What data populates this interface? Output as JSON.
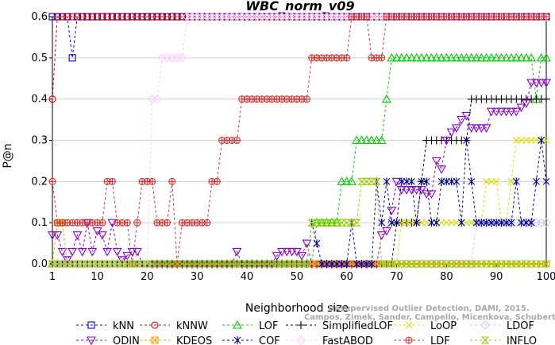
{
  "chart_data": {
    "type": "line",
    "title": "WBC_norm_v09",
    "xlabel": "Neighborhood size",
    "ylabel": "P@n",
    "xlim": [
      1,
      100
    ],
    "ylim": [
      0,
      0.6
    ],
    "xticks": [
      1,
      10,
      20,
      30,
      40,
      50,
      60,
      70,
      80,
      90,
      100
    ],
    "yticks": [
      0.0,
      0.1,
      0.2,
      0.3,
      0.4,
      0.5,
      0.6
    ],
    "credit": [
      "Unsupervised Outlier Detection, DAMI, 2015.",
      "Campos, Zimek, Sander, Campello, Micenkova, Schubert, Assent, Houle"
    ],
    "series": [
      {
        "name": "kNN",
        "color": "#0000cc",
        "marker": "square",
        "points": [
          [
            1,
            0.6
          ],
          [
            3,
            0.6
          ],
          [
            4,
            0.6
          ],
          [
            5,
            0.5
          ],
          [
            6,
            0.6
          ],
          [
            100,
            0.6
          ]
        ]
      },
      {
        "name": "kNNW",
        "color": "#cc0000",
        "marker": "circle",
        "points": [
          [
            1,
            0.4
          ],
          [
            2,
            0.6
          ],
          [
            100,
            0.6
          ]
        ]
      },
      {
        "name": "LOF",
        "color": "#00cc00",
        "marker": "triangle",
        "points": [
          [
            1,
            0
          ],
          [
            53,
            0
          ],
          [
            54,
            0.1
          ],
          [
            58,
            0.1
          ],
          [
            59,
            0.2
          ],
          [
            61,
            0.2
          ],
          [
            62,
            0.3
          ],
          [
            67,
            0.3
          ],
          [
            68,
            0.4
          ],
          [
            69,
            0.5
          ],
          [
            97,
            0.5
          ],
          [
            98,
            0.4
          ],
          [
            99,
            0.5
          ],
          [
            100,
            0.5
          ]
        ]
      },
      {
        "name": "SimplifiedLOF",
        "color": "#000000",
        "marker": "plus",
        "points": [
          [
            1,
            0
          ],
          [
            69,
            0
          ],
          [
            70,
            0.1
          ],
          [
            74,
            0.1
          ],
          [
            75,
            0.2
          ],
          [
            76,
            0.3
          ],
          [
            84,
            0.3
          ],
          [
            85,
            0.4
          ],
          [
            100,
            0.4
          ]
        ]
      },
      {
        "name": "LoOP",
        "color": "#dddd00",
        "marker": "x",
        "points": [
          [
            1,
            0
          ],
          [
            70,
            0
          ],
          [
            71,
            0.1
          ],
          [
            87,
            0.1
          ],
          [
            88,
            0.2
          ],
          [
            90,
            0.2
          ],
          [
            91,
            0.1
          ],
          [
            93,
            0.2
          ],
          [
            94,
            0.3
          ],
          [
            100,
            0.3
          ]
        ]
      },
      {
        "name": "LDOF",
        "color": "#ccccee",
        "marker": "diamond",
        "points": [
          [
            1,
            0
          ],
          [
            85,
            0
          ],
          [
            86,
            0.1
          ],
          [
            100,
            0.1
          ]
        ]
      },
      {
        "name": "ODIN",
        "color": "#8800cc",
        "marker": "triangle-down",
        "points": [
          [
            1,
            0.07
          ],
          [
            2,
            0.07
          ],
          [
            3,
            0.03
          ],
          [
            4,
            0.01
          ],
          [
            5,
            0.03
          ],
          [
            6,
            0.07
          ],
          [
            7,
            0.03
          ],
          [
            8,
            0.1
          ],
          [
            9,
            0.03
          ],
          [
            10,
            0.08
          ],
          [
            11,
            0.07
          ],
          [
            12,
            0.03
          ],
          [
            13,
            0.1
          ],
          [
            14,
            0.03
          ],
          [
            15,
            0.01
          ],
          [
            16,
            0.02
          ],
          [
            17,
            0.03
          ],
          [
            18,
            0.03
          ],
          [
            19,
            0
          ],
          [
            37,
            0
          ],
          [
            38,
            0.03
          ],
          [
            39,
            0
          ],
          [
            45,
            0
          ],
          [
            46,
            0.02
          ],
          [
            47,
            0.03
          ],
          [
            48,
            0.03
          ],
          [
            49,
            0.03
          ],
          [
            50,
            0.03
          ],
          [
            51,
            0.02
          ],
          [
            52,
            0.05
          ],
          [
            53,
            0
          ],
          [
            66,
            0
          ],
          [
            67,
            0.07
          ],
          [
            68,
            0.08
          ],
          [
            69,
            0.13
          ],
          [
            70,
            0.2
          ],
          [
            71,
            0.18
          ],
          [
            72,
            0.18
          ],
          [
            73,
            0.18
          ],
          [
            74,
            0.18
          ],
          [
            75,
            0.18
          ],
          [
            76,
            0.17
          ],
          [
            77,
            0.17
          ],
          [
            78,
            0.25
          ],
          [
            79,
            0.23
          ],
          [
            80,
            0.3
          ],
          [
            81,
            0.32
          ],
          [
            82,
            0.33
          ],
          [
            83,
            0.35
          ],
          [
            84,
            0.36
          ],
          [
            85,
            0.33
          ],
          [
            86,
            0.33
          ],
          [
            87,
            0.33
          ],
          [
            88,
            0.33
          ],
          [
            89,
            0.37
          ],
          [
            90,
            0.37
          ],
          [
            91,
            0.37
          ],
          [
            92,
            0.37
          ],
          [
            93,
            0.37
          ],
          [
            94,
            0.37
          ],
          [
            95,
            0.38
          ],
          [
            96,
            0.39
          ],
          [
            97,
            0.44
          ],
          [
            98,
            0.44
          ]
        ]
      },
      {
        "name": "KDEOS",
        "color": "#ff9900",
        "marker": "square-x",
        "points": [
          [
            1,
            0
          ],
          [
            2,
            0.1
          ],
          [
            3,
            0.1
          ],
          [
            4,
            0
          ],
          [
            100,
            0
          ]
        ]
      },
      {
        "name": "COF",
        "color": "#000088",
        "marker": "asterisk",
        "points": [
          [
            1,
            0
          ],
          [
            52,
            0
          ],
          [
            53,
            0.1
          ],
          [
            54,
            0.05
          ],
          [
            55,
            0
          ],
          [
            60,
            0
          ],
          [
            61,
            0.1
          ],
          [
            62,
            0
          ],
          [
            65,
            0
          ],
          [
            66,
            0.2
          ],
          [
            67,
            0.1
          ],
          [
            68,
            0.2
          ],
          [
            69,
            0.1
          ],
          [
            70,
            0.1
          ],
          [
            71,
            0.2
          ],
          [
            72,
            0.2
          ],
          [
            73,
            0.2
          ],
          [
            74,
            0.1
          ],
          [
            75,
            0.2
          ],
          [
            76,
            0.2
          ],
          [
            77,
            0.1
          ],
          [
            78,
            0.1
          ],
          [
            79,
            0.2
          ],
          [
            80,
            0.2
          ],
          [
            81,
            0.2
          ],
          [
            82,
            0.2
          ],
          [
            83,
            0.1
          ],
          [
            84,
            0.3
          ],
          [
            85,
            0.2
          ],
          [
            86,
            0.1
          ],
          [
            87,
            0.1
          ],
          [
            88,
            0.1
          ],
          [
            89,
            0.1
          ],
          [
            90,
            0.1
          ],
          [
            91,
            0.1
          ],
          [
            92,
            0.1
          ],
          [
            93,
            0.1
          ],
          [
            94,
            0.2
          ],
          [
            95,
            0.1
          ],
          [
            96,
            0.1
          ],
          [
            97,
            0.1
          ],
          [
            98,
            0.2
          ],
          [
            99,
            0.3
          ],
          [
            100,
            0.2
          ]
        ]
      },
      {
        "name": "FastABOD",
        "color": "#ffccff",
        "marker": "diamond",
        "points": [
          [
            1,
            0
          ],
          [
            20,
            0
          ],
          [
            21,
            0.4
          ],
          [
            22,
            0.4
          ],
          [
            23,
            0.5
          ],
          [
            24,
            0.5
          ],
          [
            25,
            0.5
          ],
          [
            26,
            0.5
          ],
          [
            27,
            0.5
          ],
          [
            28,
            0.6
          ],
          [
            100,
            0.6
          ]
        ]
      },
      {
        "name": "LDF",
        "color": "#cc3333",
        "marker": "circle-plus",
        "points": [
          [
            1,
            0.2
          ],
          [
            2,
            0.1
          ],
          [
            3,
            0.1
          ],
          [
            4,
            0.1
          ],
          [
            5,
            0.1
          ],
          [
            6,
            0.1
          ],
          [
            7,
            0.1
          ],
          [
            8,
            0.1
          ],
          [
            9,
            0.1
          ],
          [
            10,
            0.1
          ],
          [
            11,
            0.1
          ],
          [
            12,
            0.2
          ],
          [
            13,
            0.2
          ],
          [
            14,
            0.1
          ],
          [
            15,
            0.1
          ],
          [
            16,
            0.1
          ],
          [
            17,
            0
          ],
          [
            18,
            0.1
          ],
          [
            19,
            0.2
          ],
          [
            20,
            0.2
          ],
          [
            21,
            0.2
          ],
          [
            22,
            0.1
          ],
          [
            23,
            0.1
          ],
          [
            24,
            0.1
          ],
          [
            25,
            0.2
          ],
          [
            26,
            0
          ],
          [
            27,
            0.1
          ],
          [
            28,
            0.1
          ],
          [
            29,
            0.1
          ],
          [
            30,
            0.1
          ],
          [
            31,
            0.1
          ],
          [
            32,
            0.1
          ],
          [
            33,
            0.2
          ],
          [
            34,
            0.2
          ],
          [
            35,
            0.3
          ],
          [
            36,
            0.3
          ],
          [
            37,
            0.3
          ],
          [
            38,
            0.3
          ],
          [
            39,
            0.4
          ],
          [
            40,
            0.4
          ],
          [
            41,
            0.4
          ],
          [
            42,
            0.4
          ],
          [
            43,
            0.4
          ],
          [
            44,
            0.4
          ],
          [
            45,
            0.4
          ],
          [
            46,
            0.4
          ],
          [
            47,
            0.4
          ],
          [
            48,
            0.4
          ],
          [
            49,
            0.4
          ],
          [
            50,
            0.4
          ],
          [
            51,
            0.4
          ],
          [
            52,
            0.4
          ],
          [
            53,
            0.5
          ],
          [
            54,
            0.5
          ],
          [
            55,
            0.5
          ],
          [
            56,
            0.5
          ],
          [
            57,
            0.5
          ],
          [
            58,
            0.5
          ],
          [
            59,
            0.5
          ],
          [
            60,
            0.5
          ],
          [
            61,
            0.6
          ],
          [
            62,
            0.6
          ],
          [
            63,
            0.6
          ],
          [
            64,
            0.6
          ],
          [
            65,
            0.5
          ],
          [
            66,
            0.5
          ],
          [
            67,
            0.5
          ],
          [
            68,
            0.6
          ],
          [
            100,
            0.6
          ]
        ]
      },
      {
        "name": "INFLO",
        "color": "#99cc00",
        "marker": "hourglass",
        "points": [
          [
            1,
            0
          ],
          [
            52,
            0
          ],
          [
            53,
            0.1
          ],
          [
            54,
            0.1
          ],
          [
            55,
            0.1
          ],
          [
            56,
            0.1
          ],
          [
            57,
            0.1
          ],
          [
            58,
            0.1
          ],
          [
            59,
            0.1
          ],
          [
            60,
            0.1
          ],
          [
            61,
            0.1
          ],
          [
            62,
            0.1
          ],
          [
            63,
            0.2
          ],
          [
            64,
            0.2
          ],
          [
            65,
            0.2
          ],
          [
            66,
            0.2
          ],
          [
            67,
            0
          ],
          [
            100,
            0
          ]
        ]
      }
    ]
  }
}
